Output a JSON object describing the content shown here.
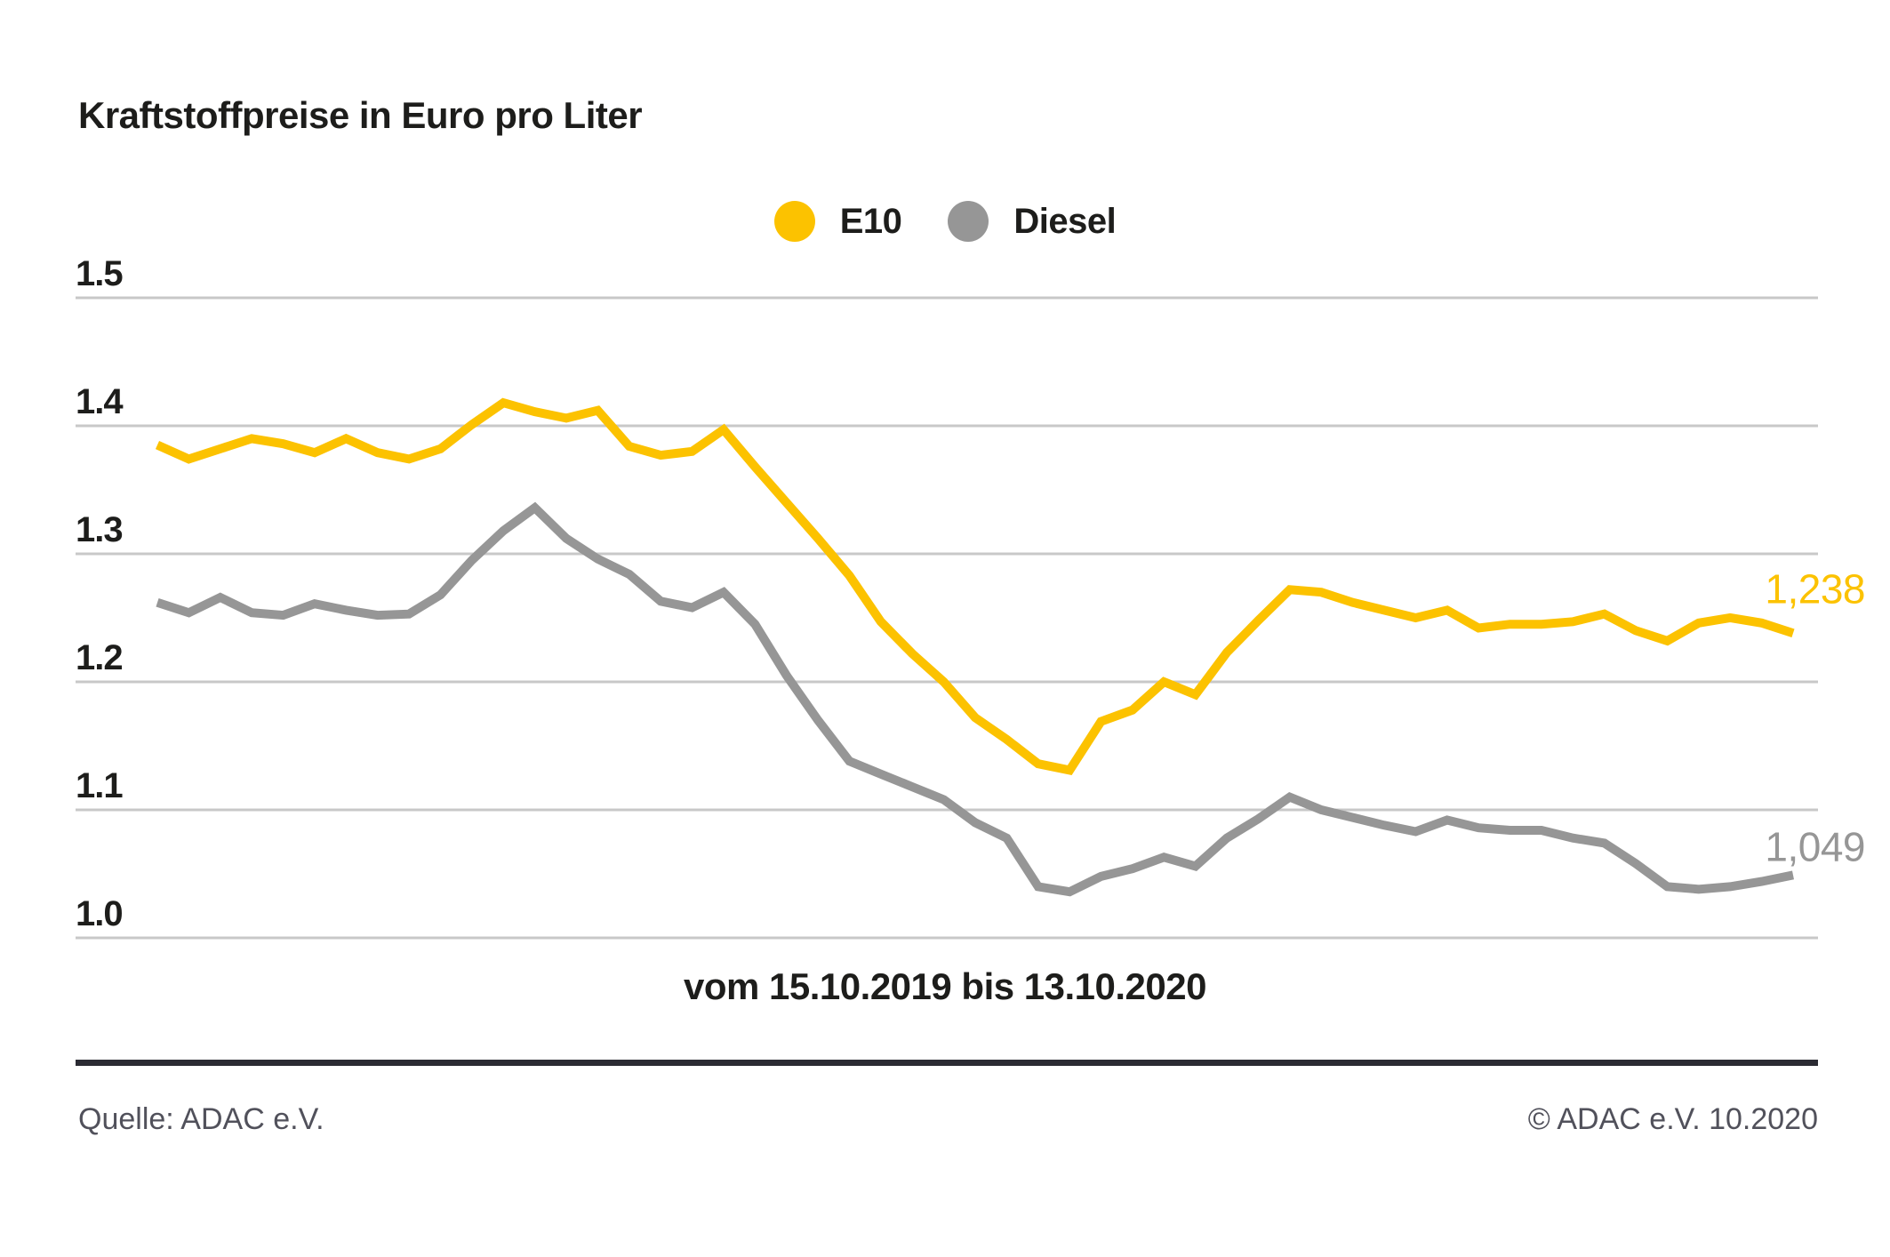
{
  "title": "Kraftstoffpreise in Euro pro Liter",
  "x_axis_label": "vom 15.10.2019 bis 13.10.2020",
  "footer": {
    "source": "Quelle: ADAC e.V.",
    "copyright": "© ADAC e.V. 10.2020"
  },
  "colors": {
    "e10": "#FCC200",
    "diesel": "#969696",
    "text_dark": "#1D1D1B",
    "gridline": "#C8C8C8",
    "footer_rule": "#2B2B33",
    "footer_text": "#51515B",
    "background": "#FFFFFF"
  },
  "chart_data": {
    "type": "line",
    "title": "Kraftstoffpreise in Euro pro Liter",
    "xlabel": "vom 15.10.2019 bis 13.10.2020",
    "ylabel": "Euro pro Liter",
    "x_start_date": "15.10.2019",
    "x_end_date": "13.10.2020",
    "x_interval": "weekly",
    "ylim": [
      1.0,
      1.5
    ],
    "grid": "horizontal",
    "legend_position": "top-center",
    "y_ticks": [
      {
        "label": "1.5",
        "value": 1.5
      },
      {
        "label": "1.4",
        "value": 1.4
      },
      {
        "label": "1.3",
        "value": 1.3
      },
      {
        "label": "1.2",
        "value": 1.2
      },
      {
        "label": "1.1",
        "value": 1.1
      },
      {
        "label": "1.0",
        "value": 1.0
      }
    ],
    "series": [
      {
        "name": "E10",
        "color": "#FCC200",
        "end_label": "1,238",
        "end_value": 1.238,
        "values": [
          1.385,
          1.374,
          1.382,
          1.39,
          1.386,
          1.379,
          1.39,
          1.379,
          1.374,
          1.382,
          1.401,
          1.418,
          1.411,
          1.406,
          1.412,
          1.384,
          1.377,
          1.38,
          1.397,
          1.368,
          1.34,
          1.312,
          1.283,
          1.247,
          1.222,
          1.2,
          1.172,
          1.155,
          1.136,
          1.131,
          1.169,
          1.178,
          1.2,
          1.19,
          1.223,
          1.248,
          1.272,
          1.27,
          1.262,
          1.256,
          1.25,
          1.256,
          1.242,
          1.245,
          1.245,
          1.247,
          1.253,
          1.24,
          1.232,
          1.246,
          1.25,
          1.246,
          1.238
        ]
      },
      {
        "name": "Diesel",
        "color": "#969696",
        "end_label": "1,049",
        "end_value": 1.049,
        "values": [
          1.262,
          1.254,
          1.266,
          1.254,
          1.252,
          1.261,
          1.256,
          1.252,
          1.253,
          1.268,
          1.295,
          1.318,
          1.336,
          1.312,
          1.296,
          1.284,
          1.263,
          1.258,
          1.27,
          1.245,
          1.205,
          1.17,
          1.138,
          1.128,
          1.118,
          1.108,
          1.09,
          1.078,
          1.04,
          1.036,
          1.048,
          1.054,
          1.063,
          1.056,
          1.078,
          1.093,
          1.11,
          1.1,
          1.094,
          1.088,
          1.083,
          1.092,
          1.086,
          1.084,
          1.084,
          1.078,
          1.074,
          1.058,
          1.04,
          1.038,
          1.04,
          1.044,
          1.049
        ]
      }
    ]
  }
}
